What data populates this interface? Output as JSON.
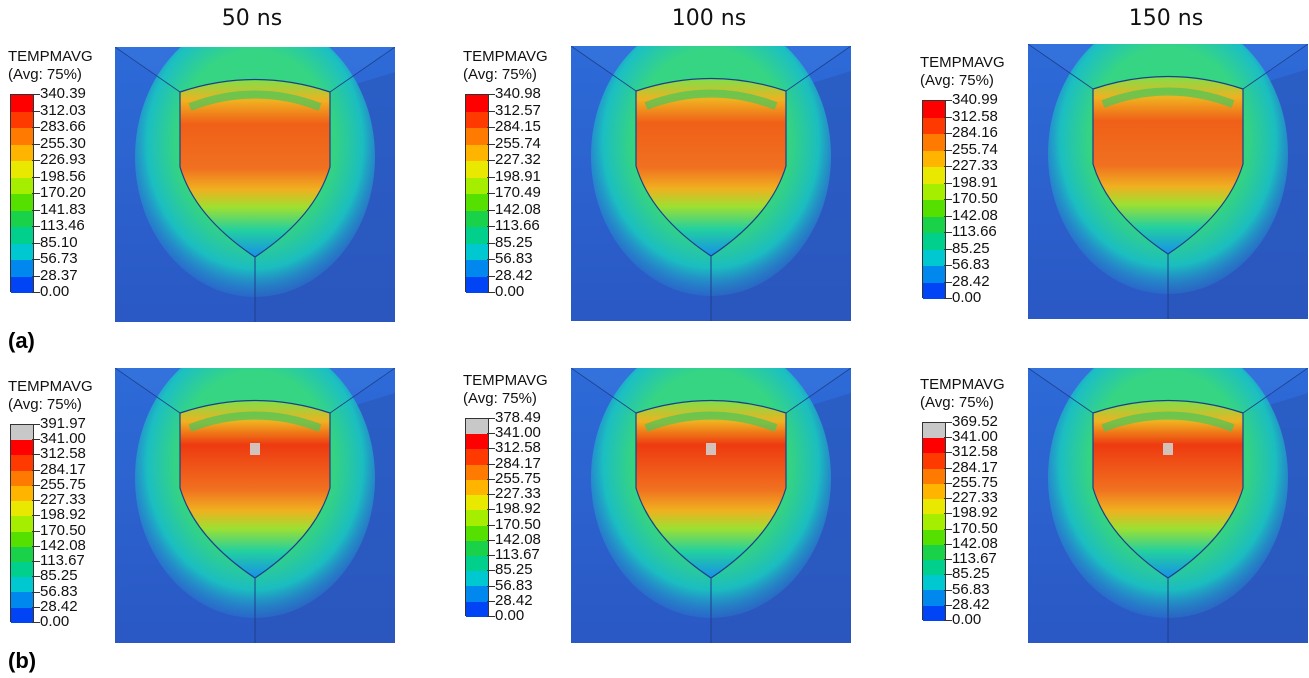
{
  "columns": [
    "50 ns",
    "100 ns",
    "150 ns"
  ],
  "rows": [
    "(a)",
    "(b)"
  ],
  "legend_title": "TEMPMAVG",
  "legend_subtitle": "(Avg: 75%)",
  "panels": [
    {
      "values": [
        "340.39",
        "312.03",
        "283.66",
        "255.30",
        "226.93",
        "198.56",
        "170.20",
        "141.83",
        "113.46",
        "85.10",
        "56.73",
        "28.37",
        "0.00"
      ],
      "over_limit": false
    },
    {
      "values": [
        "340.98",
        "312.57",
        "284.15",
        "255.74",
        "227.32",
        "198.91",
        "170.49",
        "142.08",
        "113.66",
        "85.25",
        "56.83",
        "28.42",
        "0.00"
      ],
      "over_limit": false
    },
    {
      "values": [
        "340.99",
        "312.58",
        "284.16",
        "255.74",
        "227.33",
        "198.91",
        "170.50",
        "142.08",
        "113.66",
        "85.25",
        "56.83",
        "28.42",
        "0.00"
      ],
      "over_limit": false
    },
    {
      "values": [
        "391.97",
        "341.00",
        "312.58",
        "284.17",
        "255.75",
        "227.33",
        "198.92",
        "170.50",
        "142.08",
        "113.67",
        "85.25",
        "56.83",
        "28.42",
        "0.00"
      ],
      "over_limit": true
    },
    {
      "values": [
        "378.49",
        "341.00",
        "312.58",
        "284.17",
        "255.75",
        "227.33",
        "198.92",
        "170.50",
        "142.08",
        "113.67",
        "85.25",
        "56.83",
        "28.42",
        "0.00"
      ],
      "over_limit": true
    },
    {
      "values": [
        "369.52",
        "341.00",
        "312.58",
        "284.17",
        "255.75",
        "227.33",
        "198.92",
        "170.50",
        "142.08",
        "113.67",
        "85.25",
        "56.83",
        "28.42",
        "0.00"
      ],
      "over_limit": true
    }
  ],
  "colors": {
    "scale": [
      "#ff0000",
      "#ff3a00",
      "#ff7a00",
      "#ffb400",
      "#e8e800",
      "#a6ee00",
      "#55e000",
      "#19d24a",
      "#00d08c",
      "#00c8d0",
      "#0088ee",
      "#0044f5",
      "#0000ff"
    ],
    "over": "#c8c8c8",
    "background": "#2f63d6"
  }
}
